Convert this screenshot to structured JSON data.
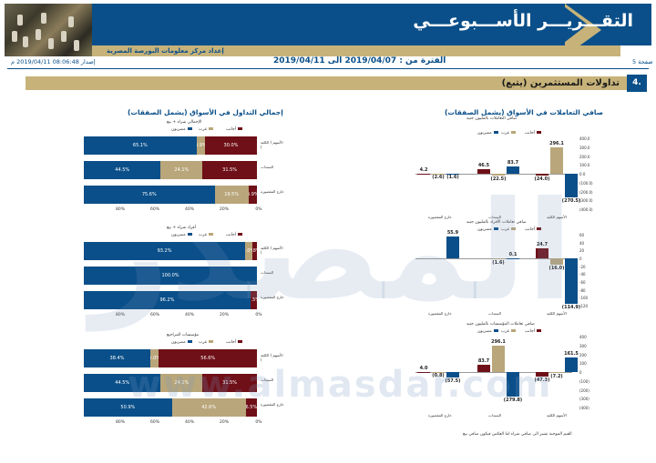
{
  "header": {
    "title": "التقـــريـــر الأســـبوعـــي",
    "subtitle": "إعداد مركز معلومات البورصة المصرية"
  },
  "info": {
    "page": "صفحة 5",
    "period": "الفترة من : 2019/04/07 الى 2019/04/11",
    "issue_date": "إصدار 08:06:48 2019/04/11 م"
  },
  "section": {
    "number": "4.",
    "title": "تداولات المستثمرين (يتبع)"
  },
  "left_title": "إجمالي التداول في الأسواق (يشمل الصفقات)",
  "right_title": "صافي التعاملات في الأسواق (يشمل الصفقات)",
  "legend": {
    "egyptian": "مصريون",
    "arab": "عرب",
    "foreign": "أجانب"
  },
  "watermark": {
    "arabic": "المصدر",
    "url": "www.almasdar.com"
  },
  "note": "القيم الموجبة تشير الى صافي شراء اما العكس فيكون صافي بيع",
  "chart_data": [
    {
      "type": "bar",
      "orientation": "horizontal",
      "stacked": true,
      "subtitle": "الإجمالي شراء + بيع",
      "categories": [
        "الأسهم ( الكلية )",
        "السندات",
        "خارج المقصورة"
      ],
      "series": [
        {
          "name": "مصريون",
          "values": [
            65.1,
            44.5,
            75.6
          ]
        },
        {
          "name": "عرب",
          "values": [
            4.9,
            24.1,
            19.5
          ]
        },
        {
          "name": "أجانب",
          "values": [
            30.0,
            31.5,
            4.9
          ]
        }
      ],
      "xticks": [
        "80%",
        "60%",
        "40%",
        "20%",
        "0%"
      ]
    },
    {
      "type": "bar",
      "orientation": "horizontal",
      "stacked": true,
      "subtitle": "أفراد شراء + بيع",
      "categories": [
        "الأسهم ( الكلية )",
        "السندات",
        "خارج المقصورة"
      ],
      "series": [
        {
          "name": "مصريون",
          "values": [
            93.2,
            100.0,
            96.2
          ]
        },
        {
          "name": "عرب",
          "values": [
            4.0,
            0,
            0.3
          ]
        },
        {
          "name": "أجانب",
          "values": [
            2.8,
            0,
            3.5
          ]
        }
      ],
      "xticks": [
        "80%",
        "60%",
        "40%",
        "20%",
        "0%"
      ]
    },
    {
      "type": "bar",
      "orientation": "horizontal",
      "stacked": true,
      "subtitle": "مؤسسات المراجيع",
      "categories": [
        "الأسهم ( الكلية )",
        "السندات",
        "خارج المقصورة"
      ],
      "series": [
        {
          "name": "مصريون",
          "values": [
            38.4,
            44.5,
            50.9
          ]
        },
        {
          "name": "عرب",
          "values": [
            5.0,
            24.1,
            42.6
          ]
        },
        {
          "name": "أجانب",
          "values": [
            56.6,
            31.5,
            6.5
          ]
        }
      ],
      "xticks": [
        "80%",
        "60%",
        "40%",
        "20%",
        "0%"
      ]
    },
    {
      "type": "bar",
      "title": "صافي التعاملات بالمليون جنيه",
      "categories": [
        "الأسهم الكلية",
        "السندات",
        "خارج المقصورة"
      ],
      "series": [
        {
          "name": "مصريون",
          "values": [
            -270.5,
            83.7,
            -1.6
          ]
        },
        {
          "name": "عرب",
          "values": [
            296.1,
            -22.5,
            -2.6
          ]
        },
        {
          "name": "أجانب",
          "values": [
            -24.0,
            46.5,
            4.2
          ]
        }
      ],
      "yticks": [
        "400.0",
        "300.0",
        "200.0",
        "100.0",
        "0.0",
        "(100.0)",
        "(200.0)",
        "(300.0)",
        "(400.0)"
      ]
    },
    {
      "type": "bar",
      "title": "صافي تعاملات الأفراد بالمليون جنيه",
      "categories": [
        "الأسهم الكلية",
        "السندات",
        "خارج المقصورة"
      ],
      "series": [
        {
          "name": "مصريون",
          "values": [
            -114.9,
            0.1,
            55.9
          ]
        },
        {
          "name": "عرب",
          "values": [
            -16.0,
            -1.6,
            0
          ]
        },
        {
          "name": "أجانب",
          "values": [
            24.7,
            0,
            0
          ]
        }
      ],
      "yticks": [
        "60",
        "40",
        "20",
        "0",
        "-20",
        "-40",
        "-60",
        "-80",
        "-100",
        "-120"
      ]
    },
    {
      "type": "bar",
      "title": "صافي تعاملات المؤسسات بالمليون جنيه",
      "categories": [
        "الأسهم الكلية",
        "السندات",
        "خارج المقصورة"
      ],
      "series": [
        {
          "name": "مصريون",
          "values": [
            161.5,
            -279.8,
            -57.5
          ]
        },
        {
          "name": "عرب",
          "values": [
            -7.2,
            296.1,
            -0.8
          ]
        },
        {
          "name": "أجانب",
          "values": [
            -47.3,
            83.7,
            4.0
          ]
        }
      ],
      "yticks": [
        "400",
        "300",
        "200",
        "100",
        "0",
        "(100)",
        "(200)",
        "(300)",
        "(400)"
      ]
    }
  ]
}
